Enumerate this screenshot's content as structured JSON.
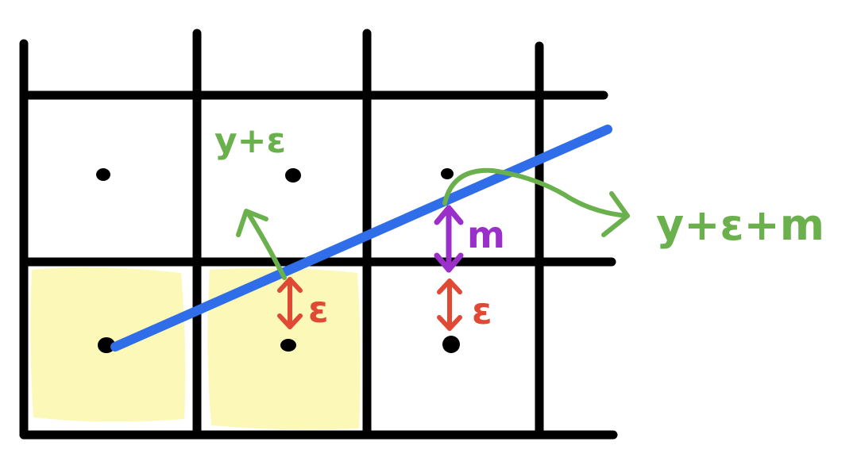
{
  "labels": {
    "y_plus_eps": "y+ε",
    "y_plus_eps_plus_m": "y+ε+m",
    "m": "m",
    "eps_left": "ε",
    "eps_right": "ε"
  },
  "colors": {
    "grid": "#000000",
    "line": "#2f6ee8",
    "green": "#6ab04c",
    "red": "#e04a35",
    "purple": "#9b2fc9",
    "highlight": "#fbf8b8"
  },
  "highlighted_cells": [
    "bottom-left",
    "bottom-middle"
  ]
}
